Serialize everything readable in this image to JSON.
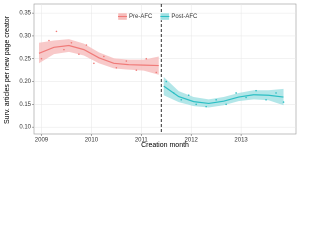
{
  "chart_data": {
    "type": "line",
    "x_label": "Creation month",
    "y_label": "Surv. articles per new page creator",
    "xlim": [
      2008.85,
      2014.1
    ],
    "ylim": [
      0.085,
      0.37
    ],
    "xticks": [
      2009,
      2010,
      2011,
      2012,
      2013
    ],
    "yticks": [
      {
        "value": 0.1,
        "label": "0.10"
      },
      {
        "value": 0.15,
        "label": "0.15"
      },
      {
        "value": 0.2,
        "label": "0.20"
      },
      {
        "value": 0.25,
        "label": "0.25"
      },
      {
        "value": 0.3,
        "label": "0.30"
      },
      {
        "value": 0.35,
        "label": "0.35"
      }
    ],
    "cutoff": 2011.4,
    "grid": true,
    "series": [
      {
        "name": "Pre-AFC",
        "color": "#f07a78",
        "band_color": "#f6bcbb",
        "x": [
          2008.95,
          2009.25,
          2009.55,
          2009.85,
          2010.15,
          2010.45,
          2010.75,
          2011.05,
          2011.35
        ],
        "values": [
          0.262,
          0.275,
          0.279,
          0.27,
          0.252,
          0.24,
          0.237,
          0.236,
          0.235
        ],
        "lower": [
          0.24,
          0.26,
          0.265,
          0.257,
          0.24,
          0.229,
          0.226,
          0.224,
          0.215
        ],
        "upper": [
          0.285,
          0.29,
          0.293,
          0.283,
          0.264,
          0.251,
          0.248,
          0.248,
          0.255
        ],
        "points": {
          "x": [
            2009.0,
            2009.15,
            2009.3,
            2009.45,
            2009.6,
            2009.75,
            2009.9,
            2010.05,
            2010.25,
            2010.5,
            2010.7,
            2010.9,
            2011.1,
            2011.3
          ],
          "values": [
            0.25,
            0.29,
            0.31,
            0.27,
            0.285,
            0.26,
            0.28,
            0.24,
            0.255,
            0.23,
            0.245,
            0.225,
            0.25,
            0.22
          ]
        }
      },
      {
        "name": "Post-AFC",
        "color": "#2bbfc4",
        "band_color": "#9fe0e2",
        "x": [
          2011.45,
          2011.75,
          2012.05,
          2012.35,
          2012.65,
          2012.95,
          2013.25,
          2013.55,
          2013.85
        ],
        "values": [
          0.19,
          0.167,
          0.156,
          0.152,
          0.157,
          0.166,
          0.171,
          0.17,
          0.166
        ],
        "lower": [
          0.17,
          0.155,
          0.146,
          0.143,
          0.148,
          0.157,
          0.161,
          0.159,
          0.148
        ],
        "upper": [
          0.21,
          0.179,
          0.166,
          0.161,
          0.166,
          0.175,
          0.181,
          0.181,
          0.184
        ],
        "points": {
          "x": [
            2011.5,
            2011.65,
            2011.8,
            2011.95,
            2012.1,
            2012.3,
            2012.5,
            2012.7,
            2012.9,
            2013.1,
            2013.3,
            2013.5,
            2013.7,
            2013.85
          ],
          "values": [
            0.2,
            0.175,
            0.16,
            0.17,
            0.15,
            0.145,
            0.16,
            0.15,
            0.175,
            0.165,
            0.18,
            0.16,
            0.175,
            0.155
          ]
        }
      }
    ]
  }
}
